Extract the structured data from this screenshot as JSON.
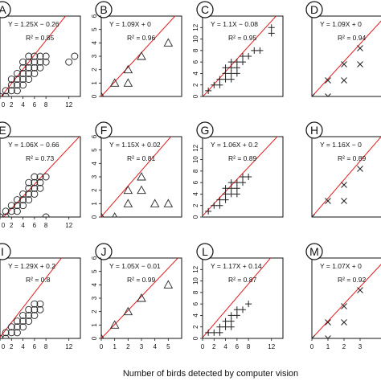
{
  "figure": {
    "xlabel": "Number of birds detected by computer vision"
  },
  "colors": {
    "fit_line": "#e41a1c",
    "marker": "#222222",
    "frame": "#111111"
  },
  "chart_data": [
    {
      "panel": "A",
      "type": "scatter",
      "marker": "circle",
      "equation": "Y = 1.25X − 0.26",
      "r2_label": "R² = 0.85",
      "slope": 1.25,
      "intercept": -0.26,
      "xlim": [
        0,
        14
      ],
      "ylim": [
        0,
        14
      ],
      "xticks": [
        "0",
        "2",
        "4",
        "6",
        "8",
        "12"
      ],
      "yticks": [],
      "x": [
        0,
        1,
        1,
        2,
        2,
        2,
        3,
        3,
        3,
        3,
        4,
        4,
        4,
        4,
        4,
        5,
        5,
        5,
        5,
        5,
        6,
        6,
        6,
        6,
        7,
        7,
        7,
        8,
        8,
        12,
        13
      ],
      "y": [
        0,
        0,
        1,
        1,
        2,
        3,
        1,
        2,
        3,
        4,
        2,
        3,
        4,
        5,
        6,
        3,
        4,
        5,
        6,
        7,
        4,
        5,
        6,
        7,
        5,
        6,
        7,
        6,
        7,
        6,
        7
      ]
    },
    {
      "panel": "B",
      "type": "scatter",
      "marker": "triangle",
      "equation": "Y = 1.09X + 0",
      "r2_label": "R² = 0.96",
      "slope": 1.09,
      "intercept": 0,
      "xlim": [
        0,
        6
      ],
      "ylim": [
        0,
        6
      ],
      "xticks": [],
      "yticks": [
        "0",
        "1",
        "2",
        "3",
        "4",
        "5",
        "6"
      ],
      "x": [
        0,
        1,
        2,
        2,
        3,
        5
      ],
      "y": [
        0,
        1,
        1,
        2,
        3,
        4
      ]
    },
    {
      "panel": "C",
      "type": "scatter",
      "marker": "plus",
      "equation": "Y = 1.1X − 0.08",
      "r2_label": "R² = 0.95",
      "slope": 1.1,
      "intercept": -0.08,
      "xlim": [
        0,
        14
      ],
      "ylim": [
        0,
        14
      ],
      "xticks": [],
      "yticks": [
        "0",
        "2",
        "4",
        "6",
        "8",
        "10",
        "12"
      ],
      "x": [
        0,
        1,
        2,
        3,
        3,
        4,
        4,
        4,
        5,
        5,
        5,
        5,
        6,
        6,
        6,
        7,
        7,
        8,
        9,
        10,
        12,
        12
      ],
      "y": [
        0,
        1,
        2,
        2,
        3,
        3,
        4,
        5,
        3,
        4,
        5,
        6,
        4,
        5,
        6,
        6,
        7,
        7,
        8,
        8,
        11,
        12
      ]
    },
    {
      "panel": "D",
      "type": "scatter",
      "marker": "cross",
      "equation": "Y = 1.09X + 0",
      "r2_label": "R² = 0.94",
      "slope": 1.09,
      "intercept": 0,
      "xlim": [
        0,
        5
      ],
      "ylim": [
        0,
        5
      ],
      "xticks": [],
      "yticks": [],
      "x": [
        0,
        1,
        1,
        2,
        2,
        3,
        3
      ],
      "y": [
        0,
        0,
        1,
        1,
        2,
        2,
        3
      ]
    },
    {
      "panel": "E",
      "type": "scatter",
      "marker": "circle",
      "equation": "Y = 1.06X − 0.66",
      "r2_label": "R² = 0.73",
      "slope": 1.06,
      "intercept": -0.66,
      "xlim": [
        0,
        14
      ],
      "ylim": [
        0,
        14
      ],
      "xticks": [
        "0",
        "2",
        "4",
        "6",
        "8",
        "12"
      ],
      "yticks": [],
      "x": [
        0,
        1,
        1,
        2,
        2,
        3,
        3,
        3,
        4,
        4,
        4,
        5,
        5,
        5,
        5,
        6,
        6,
        6,
        6,
        7,
        7,
        7,
        8,
        8
      ],
      "y": [
        0,
        0,
        1,
        1,
        2,
        1,
        2,
        3,
        2,
        3,
        4,
        3,
        4,
        5,
        6,
        4,
        5,
        6,
        7,
        5,
        6,
        7,
        7,
        0
      ]
    },
    {
      "panel": "F",
      "type": "scatter",
      "marker": "triangle",
      "equation": "Y = 1.15X + 0.02",
      "r2_label": "R² = 0.81",
      "slope": 1.15,
      "intercept": 0.02,
      "xlim": [
        0,
        6
      ],
      "ylim": [
        0,
        6
      ],
      "xticks": [],
      "yticks": [
        "0",
        "1",
        "2",
        "3",
        "4",
        "5",
        "6"
      ],
      "x": [
        0,
        1,
        2,
        2,
        3,
        3,
        4,
        5
      ],
      "y": [
        0,
        0,
        1,
        2,
        2,
        3,
        1,
        1
      ]
    },
    {
      "panel": "G",
      "type": "scatter",
      "marker": "plus",
      "equation": "Y = 1.06X + 0.2",
      "r2_label": "R² = 0.89",
      "slope": 1.06,
      "intercept": 0.2,
      "xlim": [
        0,
        14
      ],
      "ylim": [
        0,
        14
      ],
      "xticks": [],
      "yticks": [
        "0",
        "2",
        "4",
        "6",
        "8",
        "10",
        "12"
      ],
      "x": [
        0,
        1,
        2,
        3,
        3,
        4,
        4,
        4,
        5,
        5,
        5,
        6,
        6,
        6,
        7,
        7,
        8
      ],
      "y": [
        0,
        1,
        2,
        2,
        3,
        3,
        4,
        5,
        4,
        5,
        6,
        4,
        5,
        6,
        6,
        7,
        7
      ]
    },
    {
      "panel": "H",
      "type": "scatter",
      "marker": "cross",
      "equation": "Y = 1.16X − 0",
      "r2_label": "R² = 0.89",
      "slope": 1.16,
      "intercept": 0,
      "xlim": [
        0,
        5
      ],
      "ylim": [
        0,
        5
      ],
      "xticks": [],
      "yticks": [],
      "x": [
        0,
        1,
        2,
        2,
        3
      ],
      "y": [
        0,
        1,
        1,
        2,
        3
      ]
    },
    {
      "panel": "I",
      "type": "scatter",
      "marker": "circle",
      "equation": "Y = 1.29X + 0.2",
      "r2_label": "R² = 0.8",
      "slope": 1.29,
      "intercept": 0.2,
      "xlim": [
        0,
        14
      ],
      "ylim": [
        0,
        14
      ],
      "xticks": [
        "0",
        "2",
        "4",
        "6",
        "8",
        "12"
      ],
      "yticks": [],
      "x": [
        0,
        1,
        1,
        2,
        2,
        3,
        3,
        3,
        4,
        4,
        4,
        5,
        5,
        5,
        6,
        6,
        6,
        7,
        7
      ],
      "y": [
        0,
        0,
        1,
        1,
        2,
        1,
        2,
        3,
        2,
        3,
        4,
        3,
        4,
        5,
        4,
        5,
        6,
        5,
        6
      ]
    },
    {
      "panel": "J",
      "type": "scatter",
      "marker": "triangle",
      "equation": "Y = 1.05X − 0.01",
      "r2_label": "R² = 0.99",
      "slope": 1.05,
      "intercept": -0.01,
      "xlim": [
        0,
        6
      ],
      "ylim": [
        0,
        6
      ],
      "xticks": [
        "0",
        "1",
        "2",
        "3",
        "4",
        "5"
      ],
      "yticks": [
        "0",
        "1",
        "2",
        "3",
        "4",
        "5",
        "6"
      ],
      "x": [
        0,
        1,
        2,
        3,
        5
      ],
      "y": [
        0,
        1,
        2,
        3,
        4
      ]
    },
    {
      "panel": "L",
      "type": "scatter",
      "marker": "plus",
      "equation": "Y = 1.17X + 0.14",
      "r2_label": "R² = 0.87",
      "slope": 1.17,
      "intercept": 0.14,
      "xlim": [
        0,
        14
      ],
      "ylim": [
        0,
        14
      ],
      "xticks": [
        "0",
        "2",
        "4",
        "6",
        "8",
        "12"
      ],
      "yticks": [
        "0",
        "2",
        "4",
        "6",
        "8",
        "10",
        "12"
      ],
      "x": [
        0,
        1,
        2,
        3,
        3,
        4,
        4,
        5,
        5,
        5,
        6,
        6,
        7,
        8
      ],
      "y": [
        0,
        1,
        1,
        1,
        2,
        2,
        3,
        2,
        3,
        4,
        4,
        5,
        5,
        6
      ]
    },
    {
      "panel": "M",
      "type": "scatter",
      "marker": "cross",
      "equation": "Y = 1.07X + 0",
      "r2_label": "R² = 0.92",
      "slope": 1.07,
      "intercept": 0,
      "xlim": [
        0,
        5
      ],
      "ylim": [
        0,
        5
      ],
      "xticks": [
        "0",
        "1",
        "2",
        "3"
      ],
      "yticks": [],
      "x": [
        0,
        1,
        1,
        2,
        2,
        3
      ],
      "y": [
        0,
        0,
        1,
        1,
        2,
        3
      ]
    }
  ]
}
